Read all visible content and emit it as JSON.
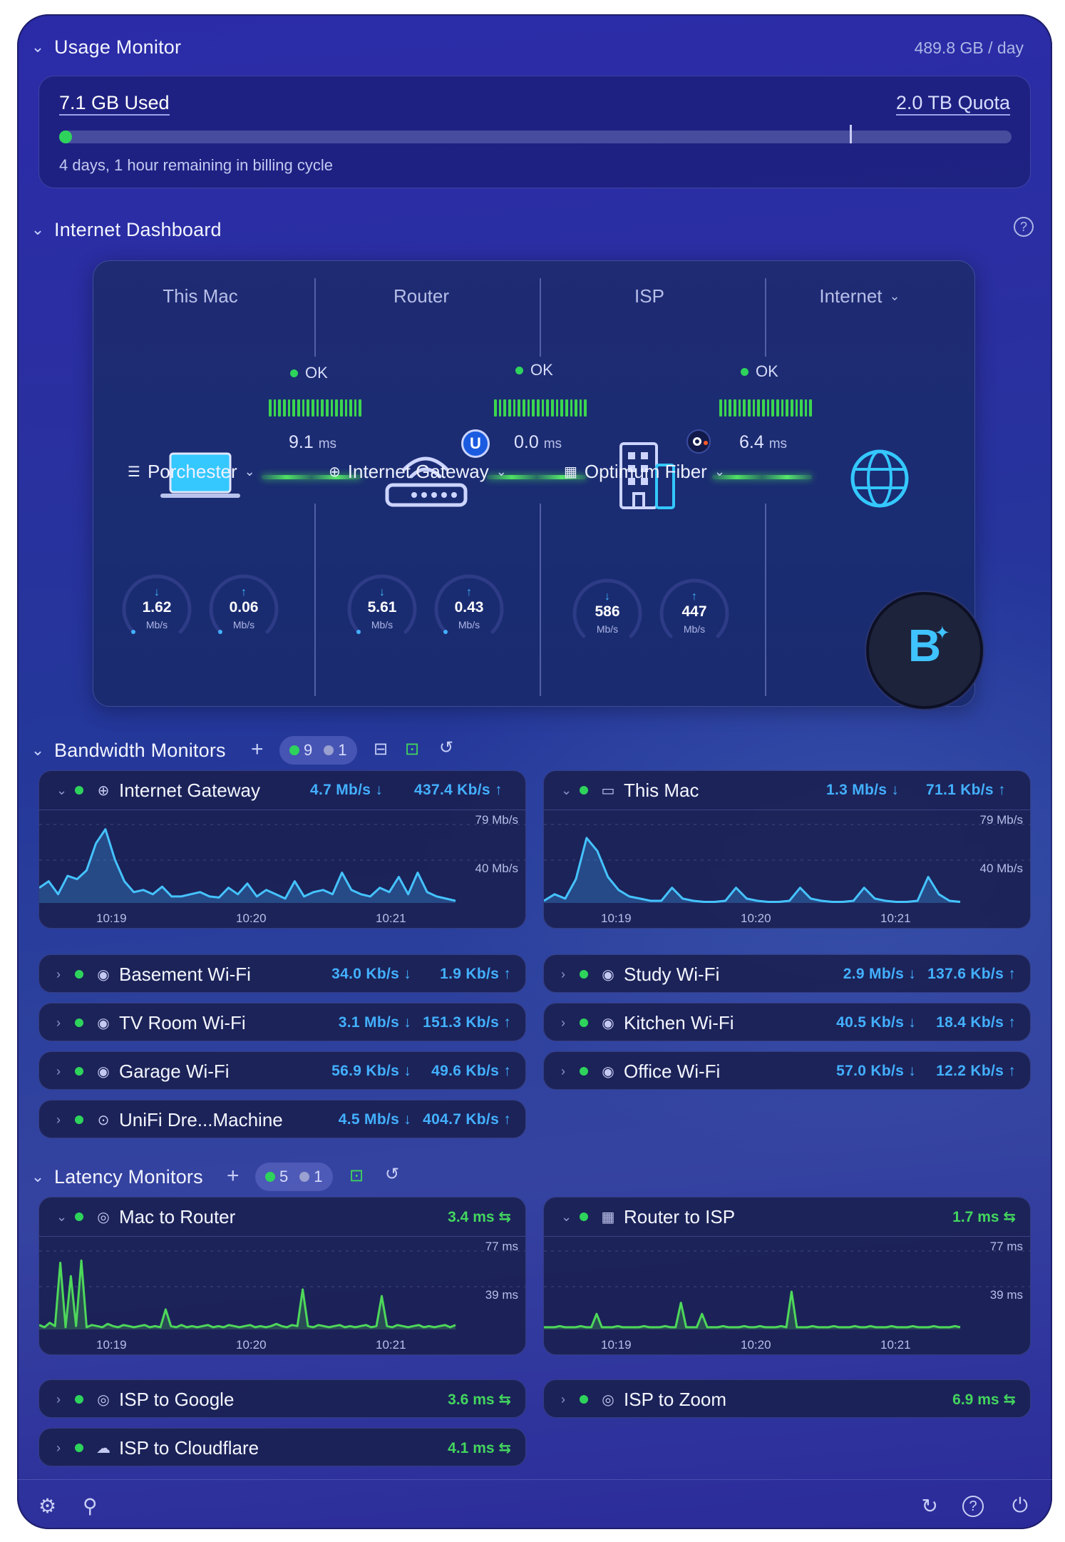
{
  "usage": {
    "title": "Usage Monitor",
    "rate": "489.8 GB / day",
    "used": "7.1 GB Used",
    "quota": "2.0 TB Quota",
    "progress_fraction": 0.0036,
    "marker_fraction": 0.83,
    "note": "4 days, 1 hour remaining in billing cycle"
  },
  "dashboard": {
    "title": "Internet Dashboard",
    "columns": [
      "This Mac",
      "Router",
      "ISP",
      "Internet"
    ],
    "links": [
      {
        "status": "OK",
        "latency": "9.1",
        "unit": "ms"
      },
      {
        "status": "OK",
        "latency": "0.0",
        "unit": "ms"
      },
      {
        "status": "OK",
        "latency": "6.4",
        "unit": "ms"
      }
    ],
    "devices": [
      {
        "label": "Porchester",
        "down": "1.62",
        "up": "0.06",
        "unit": "Mb/s"
      },
      {
        "label": "Internet Gateway",
        "down": "5.61",
        "up": "0.43",
        "unit": "Mb/s"
      },
      {
        "label": "Optimum Fiber",
        "down": "586",
        "up": "447",
        "unit": "Mb/s"
      }
    ],
    "badge_letter": "B"
  },
  "bandwidth": {
    "title": "Bandwidth Monitors",
    "active_count": "9",
    "inactive_count": "1",
    "expanded": [
      {
        "name": "Internet Gateway",
        "down": "4.7 Mb/s",
        "up": "437.4 Kb/s",
        "ymax": "79 Mb/s",
        "ymid": "40 Mb/s",
        "xticks": [
          "10:19",
          "10:20",
          "10:21"
        ],
        "series": [
          14,
          20,
          8,
          25,
          22,
          30,
          55,
          68,
          40,
          20,
          10,
          12,
          8,
          15,
          6,
          6,
          8,
          10,
          6,
          5,
          14,
          8,
          18,
          6,
          12,
          8,
          4,
          20,
          6,
          10,
          12,
          8,
          28,
          12,
          8,
          6,
          14,
          10,
          24,
          8,
          28,
          10,
          6,
          4,
          2
        ]
      },
      {
        "name": "This Mac",
        "down": "1.3 Mb/s",
        "up": "71.1 Kb/s",
        "ymax": "79 Mb/s",
        "ymid": "40 Mb/s",
        "xticks": [
          "10:19",
          "10:20",
          "10:21"
        ],
        "series": [
          2,
          8,
          4,
          22,
          60,
          48,
          24,
          12,
          6,
          4,
          2,
          2,
          14,
          4,
          2,
          1,
          1,
          2,
          14,
          4,
          2,
          1,
          1,
          2,
          14,
          4,
          2,
          1,
          1,
          2,
          14,
          4,
          2,
          1,
          1,
          2,
          24,
          8,
          2,
          1
        ]
      }
    ],
    "collapsed": [
      {
        "name": "Basement Wi-Fi",
        "down": "34.0 Kb/s",
        "up": "1.9 Kb/s",
        "icon": "wifi-icon"
      },
      {
        "name": "Study Wi-Fi",
        "down": "2.9 Mb/s",
        "up": "137.6 Kb/s",
        "icon": "wifi-icon"
      },
      {
        "name": "TV Room Wi-Fi",
        "down": "3.1 Mb/s",
        "up": "151.3 Kb/s",
        "icon": "wifi-icon"
      },
      {
        "name": "Kitchen Wi-Fi",
        "down": "40.5 Kb/s",
        "up": "18.4 Kb/s",
        "icon": "wifi-icon"
      },
      {
        "name": "Garage Wi-Fi",
        "down": "56.9 Kb/s",
        "up": "49.6 Kb/s",
        "icon": "wifi-icon"
      },
      {
        "name": "Office Wi-Fi",
        "down": "57.0 Kb/s",
        "up": "12.2 Kb/s",
        "icon": "wifi-icon"
      },
      {
        "name": "UniFi Dre...Machine",
        "down": "4.5 Mb/s",
        "up": "404.7 Kb/s",
        "icon": "unifi-icon"
      }
    ]
  },
  "latency": {
    "title": "Latency Monitors",
    "active_count": "5",
    "inactive_count": "1",
    "expanded": [
      {
        "name": "Mac to Router",
        "value": "3.4 ms",
        "ymax": "77 ms",
        "ymid": "39 ms",
        "xticks": [
          "10:19",
          "10:20",
          "10:21"
        ],
        "series": [
          4,
          2,
          6,
          3,
          60,
          2,
          48,
          3,
          62,
          2,
          4,
          3,
          2,
          5,
          3,
          2,
          4,
          3,
          2,
          3,
          4,
          2,
          3,
          2,
          18,
          3,
          2,
          4,
          2,
          3,
          2,
          3,
          4,
          2,
          3,
          2,
          4,
          3,
          2,
          3,
          4,
          2,
          3,
          2,
          3,
          5,
          3,
          2,
          4,
          3,
          36,
          3,
          2,
          4,
          3,
          2,
          3,
          4,
          2,
          3,
          2,
          3,
          4,
          2,
          3,
          30,
          3,
          2,
          4,
          3,
          2,
          3,
          4,
          2,
          3,
          2,
          3,
          4,
          2,
          4
        ]
      },
      {
        "name": "Router to ISP",
        "value": "1.7 ms",
        "ymax": "77 ms",
        "ymid": "39 ms",
        "xticks": [
          "10:19",
          "10:20",
          "10:21"
        ],
        "series": [
          2,
          2,
          2,
          3,
          2,
          2,
          2,
          3,
          2,
          2,
          14,
          2,
          2,
          2,
          3,
          2,
          2,
          2,
          2,
          3,
          2,
          2,
          2,
          3,
          2,
          2,
          24,
          2,
          2,
          2,
          14,
          2,
          2,
          2,
          3,
          2,
          2,
          2,
          3,
          2,
          2,
          3,
          2,
          2,
          2,
          3,
          2,
          34,
          2,
          2,
          2,
          3,
          2,
          2,
          2,
          3,
          2,
          2,
          2,
          3,
          2,
          2,
          3,
          2,
          2,
          2,
          3,
          2,
          2,
          2,
          3,
          2,
          2,
          2,
          3,
          2,
          2,
          2,
          3,
          2
        ]
      }
    ],
    "collapsed": [
      {
        "name": "ISP to Google",
        "value": "3.6 ms",
        "icon": "target-icon"
      },
      {
        "name": "ISP to Zoom",
        "value": "6.9 ms",
        "icon": "target-icon"
      },
      {
        "name": "ISP to Cloudflare",
        "value": "4.1 ms",
        "icon": "cloud-icon"
      }
    ]
  },
  "colors": {
    "accent_blue": "#43b0ff",
    "ok_green": "#2ed35c"
  }
}
